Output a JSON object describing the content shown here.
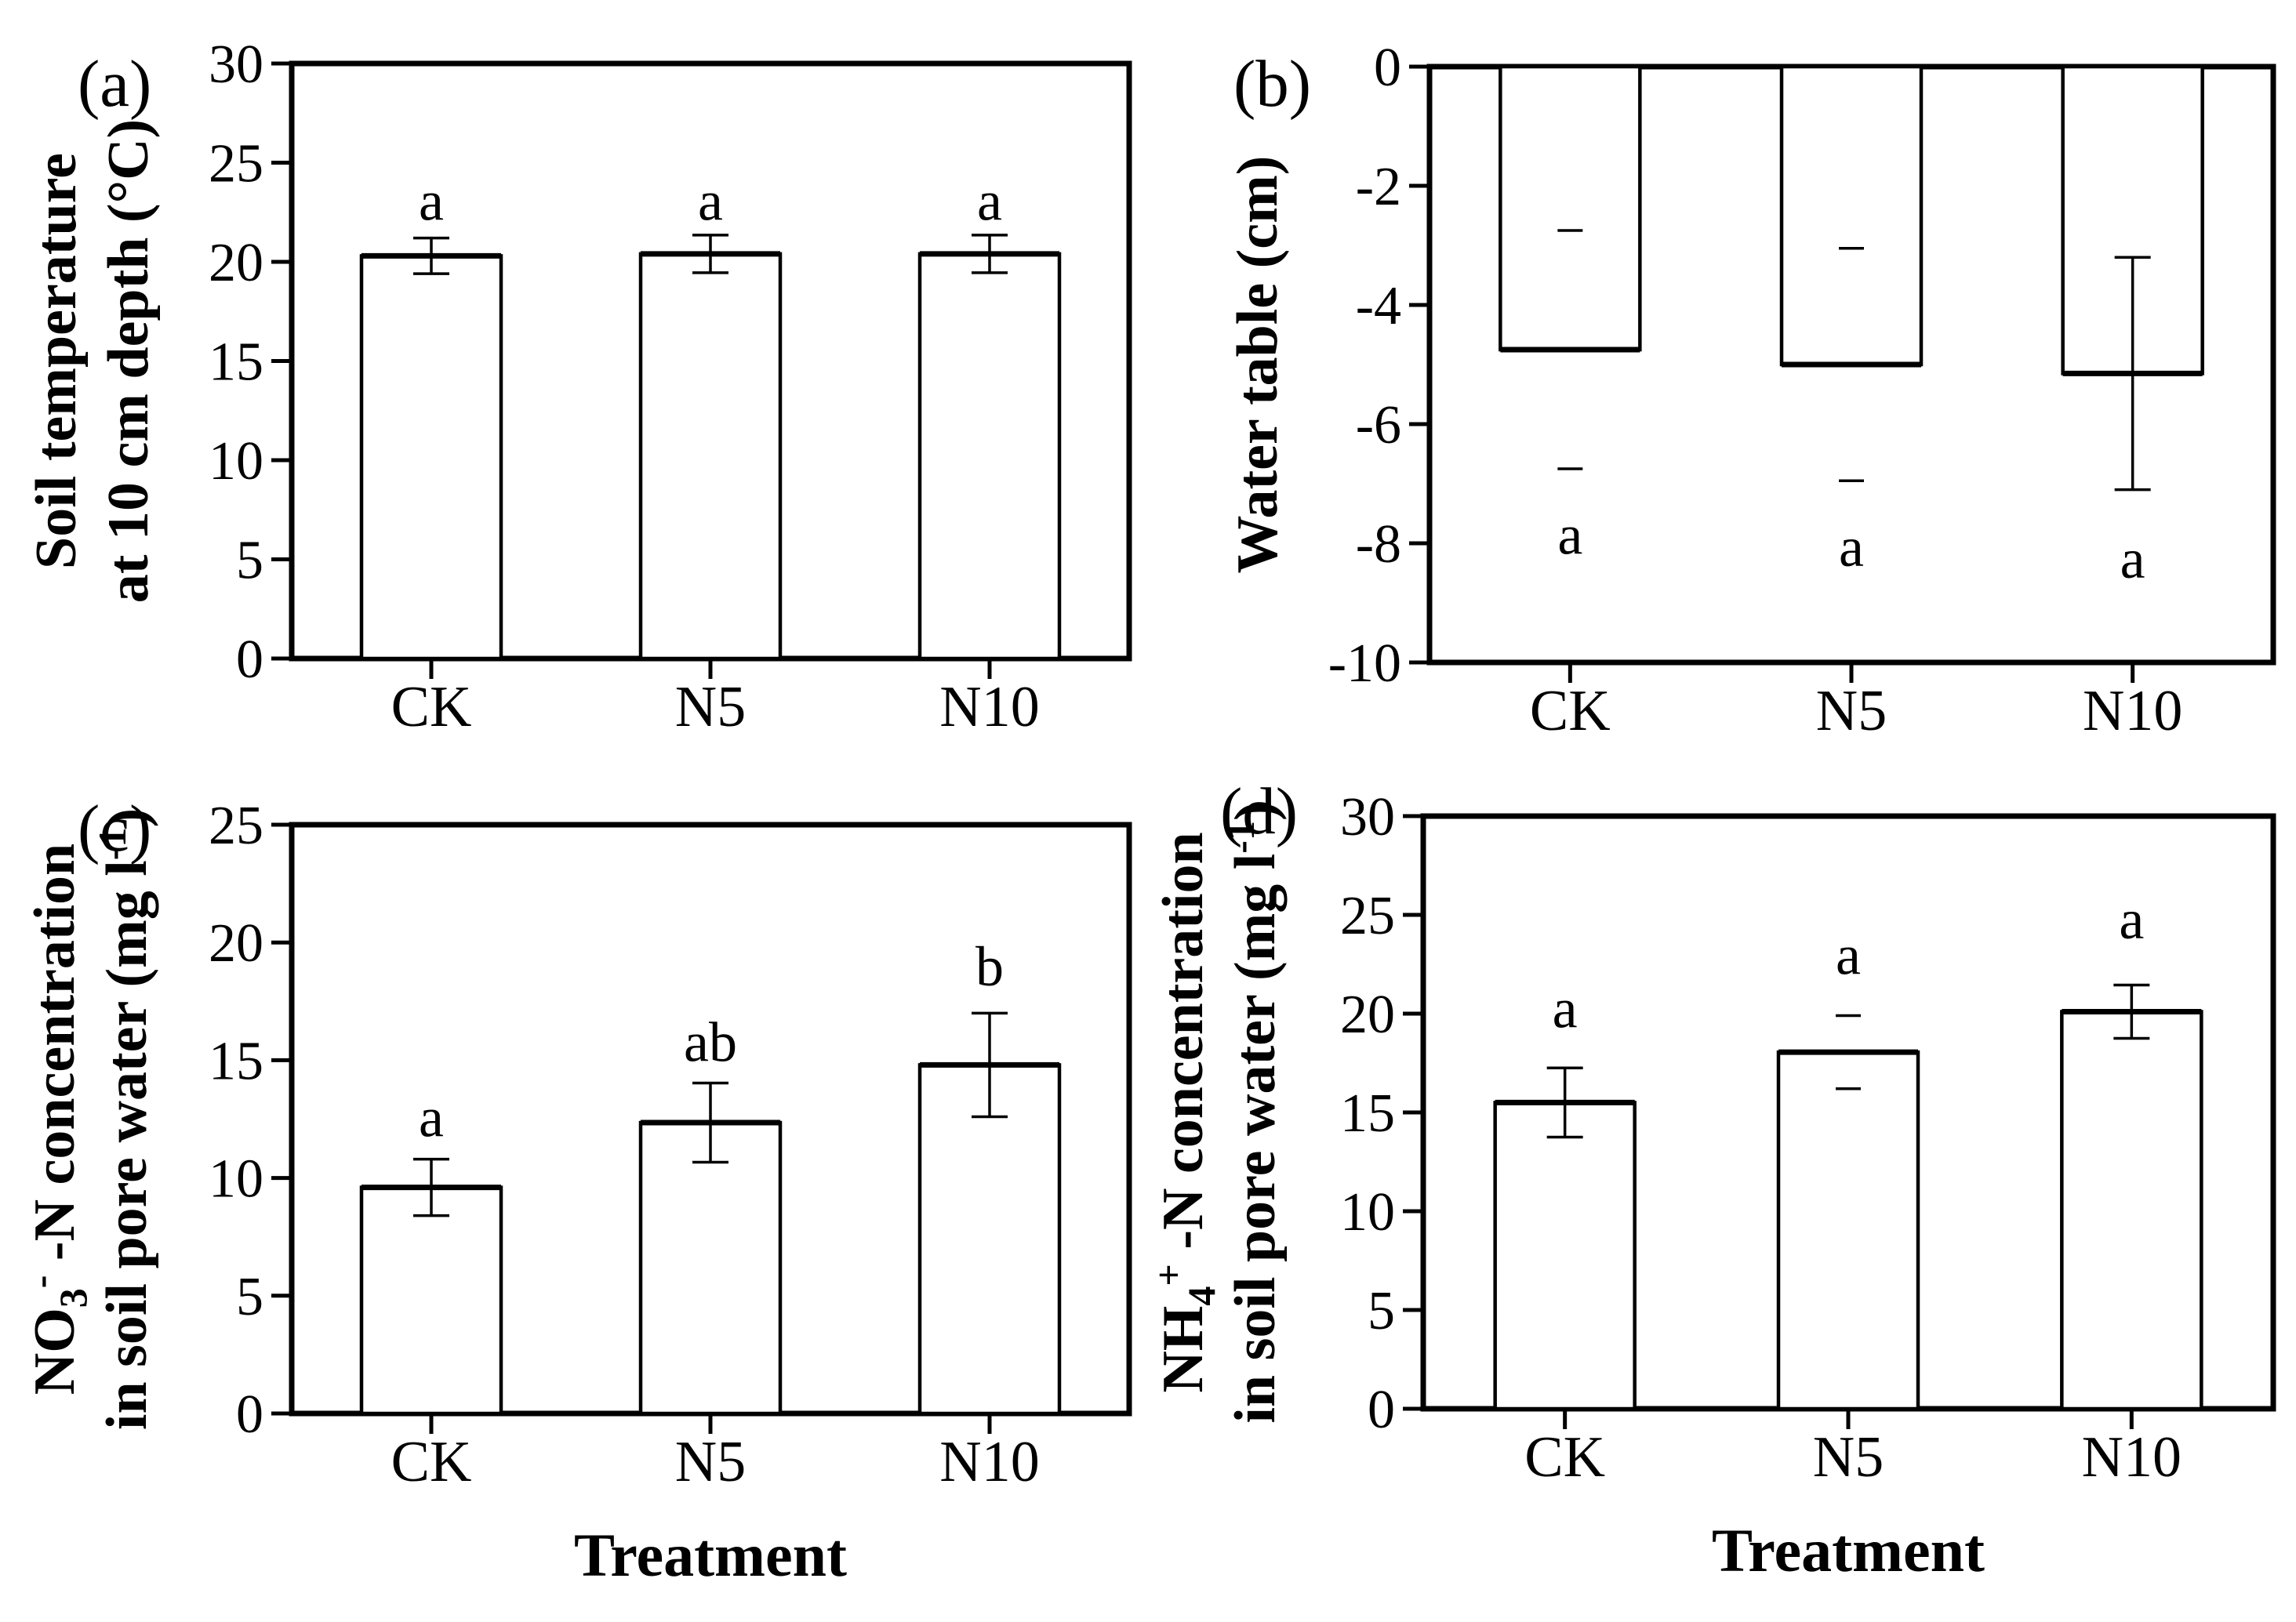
{
  "figure": {
    "background": "#ffffff",
    "ink": "#000000",
    "bar_fill": "#ffffff",
    "bar_edge": "#000000",
    "grid": false,
    "legend": "none"
  },
  "chart_data": [
    {
      "id": "a",
      "panel_label": "(a)",
      "type": "bar",
      "ylabel_lines": [
        [
          {
            "t": "Soil temperature"
          }
        ],
        [
          {
            "t": "at 10 cm depth (°C)"
          }
        ]
      ],
      "xlabel": "",
      "ylim": [
        0,
        30
      ],
      "yticks": [
        0,
        5,
        10,
        15,
        20,
        25,
        30
      ],
      "categories": [
        "CK",
        "N5",
        "N10"
      ],
      "bars": [
        {
          "category": "CK",
          "value": 20.3,
          "err": 0.9,
          "err_style": "full",
          "letter": "a",
          "letter_y": 23.1
        },
        {
          "category": "N5",
          "value": 20.4,
          "err": 0.95,
          "err_style": "full",
          "letter": "a",
          "letter_y": 23.1
        },
        {
          "category": "N10",
          "value": 20.4,
          "err": 0.95,
          "err_style": "full",
          "letter": "a",
          "letter_y": 23.1
        }
      ]
    },
    {
      "id": "b",
      "panel_label": "(b)",
      "type": "bar",
      "ylabel_lines": [
        [
          {
            "t": "Water table (cm)"
          }
        ]
      ],
      "xlabel": "",
      "ylim": [
        -10,
        0
      ],
      "yticks": [
        0,
        -2,
        -4,
        -6,
        -8,
        -10
      ],
      "categories": [
        "CK",
        "N5",
        "N10"
      ],
      "bars": [
        {
          "category": "CK",
          "value": -4.75,
          "err": 2.0,
          "err_style": "caps",
          "letter": "a",
          "letter_y": -7.85
        },
        {
          "category": "N5",
          "value": -5.0,
          "err": 1.95,
          "err_style": "caps",
          "letter": "a",
          "letter_y": -8.05
        },
        {
          "category": "N10",
          "value": -5.15,
          "err": 1.95,
          "err_style": "full",
          "letter": "a",
          "letter_y": -8.25
        }
      ]
    },
    {
      "id": "c",
      "panel_label": "(c)",
      "type": "bar",
      "ylabel_lines": [
        [
          {
            "t": "NO"
          },
          {
            "t": "3",
            "style": "sub"
          },
          {
            "t": "-",
            "style": "sup"
          },
          {
            "t": " -N concentration"
          }
        ],
        [
          {
            "t": "in soil pore water (mg l"
          },
          {
            "t": "-1",
            "style": "sup"
          },
          {
            "t": ")"
          }
        ]
      ],
      "xlabel": "Treatment",
      "ylim": [
        0,
        25
      ],
      "yticks": [
        0,
        5,
        10,
        15,
        20,
        25
      ],
      "categories": [
        "CK",
        "N5",
        "N10"
      ],
      "bars": [
        {
          "category": "CK",
          "value": 9.6,
          "err": 1.2,
          "err_style": "full",
          "letter": "a",
          "letter_y": 12.6
        },
        {
          "category": "N5",
          "value": 12.35,
          "err": 1.68,
          "err_style": "full",
          "letter": "ab",
          "letter_y": 15.8
        },
        {
          "category": "N10",
          "value": 14.8,
          "err": 2.2,
          "err_style": "full",
          "letter": "b",
          "letter_y": 19.0
        }
      ]
    },
    {
      "id": "d",
      "panel_label": "(d)",
      "type": "bar",
      "ylabel_lines": [
        [
          {
            "t": "NH"
          },
          {
            "t": "4",
            "style": "sub"
          },
          {
            "t": "+",
            "style": "sup"
          },
          {
            "t": " -N concentration"
          }
        ],
        [
          {
            "t": "in soil pore water (mg l"
          },
          {
            "t": "-1",
            "style": "sup"
          },
          {
            "t": ")"
          }
        ]
      ],
      "xlabel": "Treatment",
      "ylim": [
        0,
        30
      ],
      "yticks": [
        0,
        5,
        10,
        15,
        20,
        25,
        30
      ],
      "categories": [
        "CK",
        "N5",
        "N10"
      ],
      "bars": [
        {
          "category": "CK",
          "value": 15.5,
          "err": 1.75,
          "err_style": "full",
          "letter": "a",
          "letter_y": 20.3
        },
        {
          "category": "N5",
          "value": 18.05,
          "err": 1.85,
          "err_style": "caps",
          "letter": "a",
          "letter_y": 23.0
        },
        {
          "category": "N10",
          "value": 20.1,
          "err": 1.35,
          "err_style": "full",
          "letter": "a",
          "letter_y": 24.8
        }
      ]
    }
  ]
}
